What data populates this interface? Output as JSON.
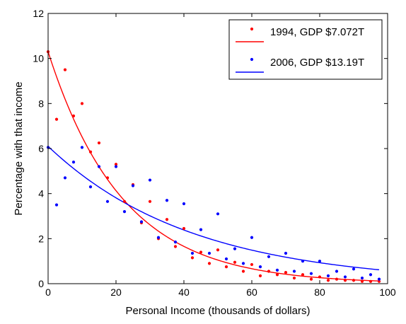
{
  "chart_data": {
    "type": "scatter",
    "title": "",
    "xlabel": "Personal Income (thousands of dollars)",
    "ylabel": "Percentage with that income",
    "xlim": [
      0,
      100
    ],
    "ylim": [
      0,
      12
    ],
    "xticks": [
      0,
      20,
      40,
      60,
      80,
      100
    ],
    "yticks": [
      0,
      2,
      4,
      6,
      8,
      10,
      12
    ],
    "grid": false,
    "legend_position": "top-right",
    "series": [
      {
        "name": "1994, GDP $7.072T",
        "color": "#ff0000",
        "points": [
          [
            0,
            10.3
          ],
          [
            2.5,
            7.3
          ],
          [
            5,
            9.5
          ],
          [
            7.5,
            7.45
          ],
          [
            10,
            8.0
          ],
          [
            12.5,
            5.85
          ],
          [
            15,
            6.25
          ],
          [
            17.5,
            4.7
          ],
          [
            20,
            5.3
          ],
          [
            22.5,
            3.65
          ],
          [
            25,
            4.4
          ],
          [
            27.5,
            2.7
          ],
          [
            30,
            3.65
          ],
          [
            32.5,
            2.0
          ],
          [
            35,
            2.85
          ],
          [
            37.5,
            1.65
          ],
          [
            40,
            2.45
          ],
          [
            42.5,
            1.15
          ],
          [
            45,
            1.4
          ],
          [
            47.5,
            0.9
          ],
          [
            50,
            1.5
          ],
          [
            52.5,
            0.75
          ],
          [
            55,
            0.95
          ],
          [
            57.5,
            0.55
          ],
          [
            60,
            0.85
          ],
          [
            62.5,
            0.35
          ],
          [
            65,
            0.55
          ],
          [
            67.5,
            0.4
          ],
          [
            70,
            0.5
          ],
          [
            72.5,
            0.25
          ],
          [
            75,
            0.4
          ],
          [
            77.5,
            0.2
          ],
          [
            80,
            0.3
          ],
          [
            82.5,
            0.15
          ],
          [
            85,
            0.2
          ],
          [
            87.5,
            0.15
          ],
          [
            90,
            0.15
          ],
          [
            92.5,
            0.1
          ],
          [
            95,
            0.1
          ],
          [
            97.5,
            0.1
          ]
        ],
        "fit": {
          "type": "exponential",
          "a": 10.3,
          "b": 0.0457
        }
      },
      {
        "name": "2006, GDP $13.19T",
        "color": "#0000ff",
        "points": [
          [
            0,
            6.05
          ],
          [
            2.5,
            3.5
          ],
          [
            5,
            4.7
          ],
          [
            7.5,
            5.4
          ],
          [
            10,
            6.05
          ],
          [
            12.5,
            4.3
          ],
          [
            15,
            5.2
          ],
          [
            17.5,
            3.65
          ],
          [
            20,
            5.2
          ],
          [
            22.5,
            3.2
          ],
          [
            25,
            4.35
          ],
          [
            27.5,
            2.75
          ],
          [
            30,
            4.6
          ],
          [
            32.5,
            2.05
          ],
          [
            35,
            3.7
          ],
          [
            37.5,
            1.85
          ],
          [
            40,
            3.55
          ],
          [
            42.5,
            1.35
          ],
          [
            45,
            2.4
          ],
          [
            47.5,
            1.35
          ],
          [
            50,
            3.1
          ],
          [
            52.5,
            1.1
          ],
          [
            55,
            1.55
          ],
          [
            57.5,
            0.9
          ],
          [
            60,
            2.05
          ],
          [
            62.5,
            0.75
          ],
          [
            65,
            1.2
          ],
          [
            67.5,
            0.6
          ],
          [
            70,
            1.35
          ],
          [
            72.5,
            0.55
          ],
          [
            75,
            1.0
          ],
          [
            77.5,
            0.45
          ],
          [
            80,
            1.0
          ],
          [
            82.5,
            0.35
          ],
          [
            85,
            0.55
          ],
          [
            87.5,
            0.3
          ],
          [
            90,
            0.65
          ],
          [
            92.5,
            0.25
          ],
          [
            95,
            0.4
          ],
          [
            97.5,
            0.2
          ]
        ],
        "fit": {
          "type": "exponential",
          "a": 6.1,
          "b": 0.0235
        }
      }
    ]
  }
}
